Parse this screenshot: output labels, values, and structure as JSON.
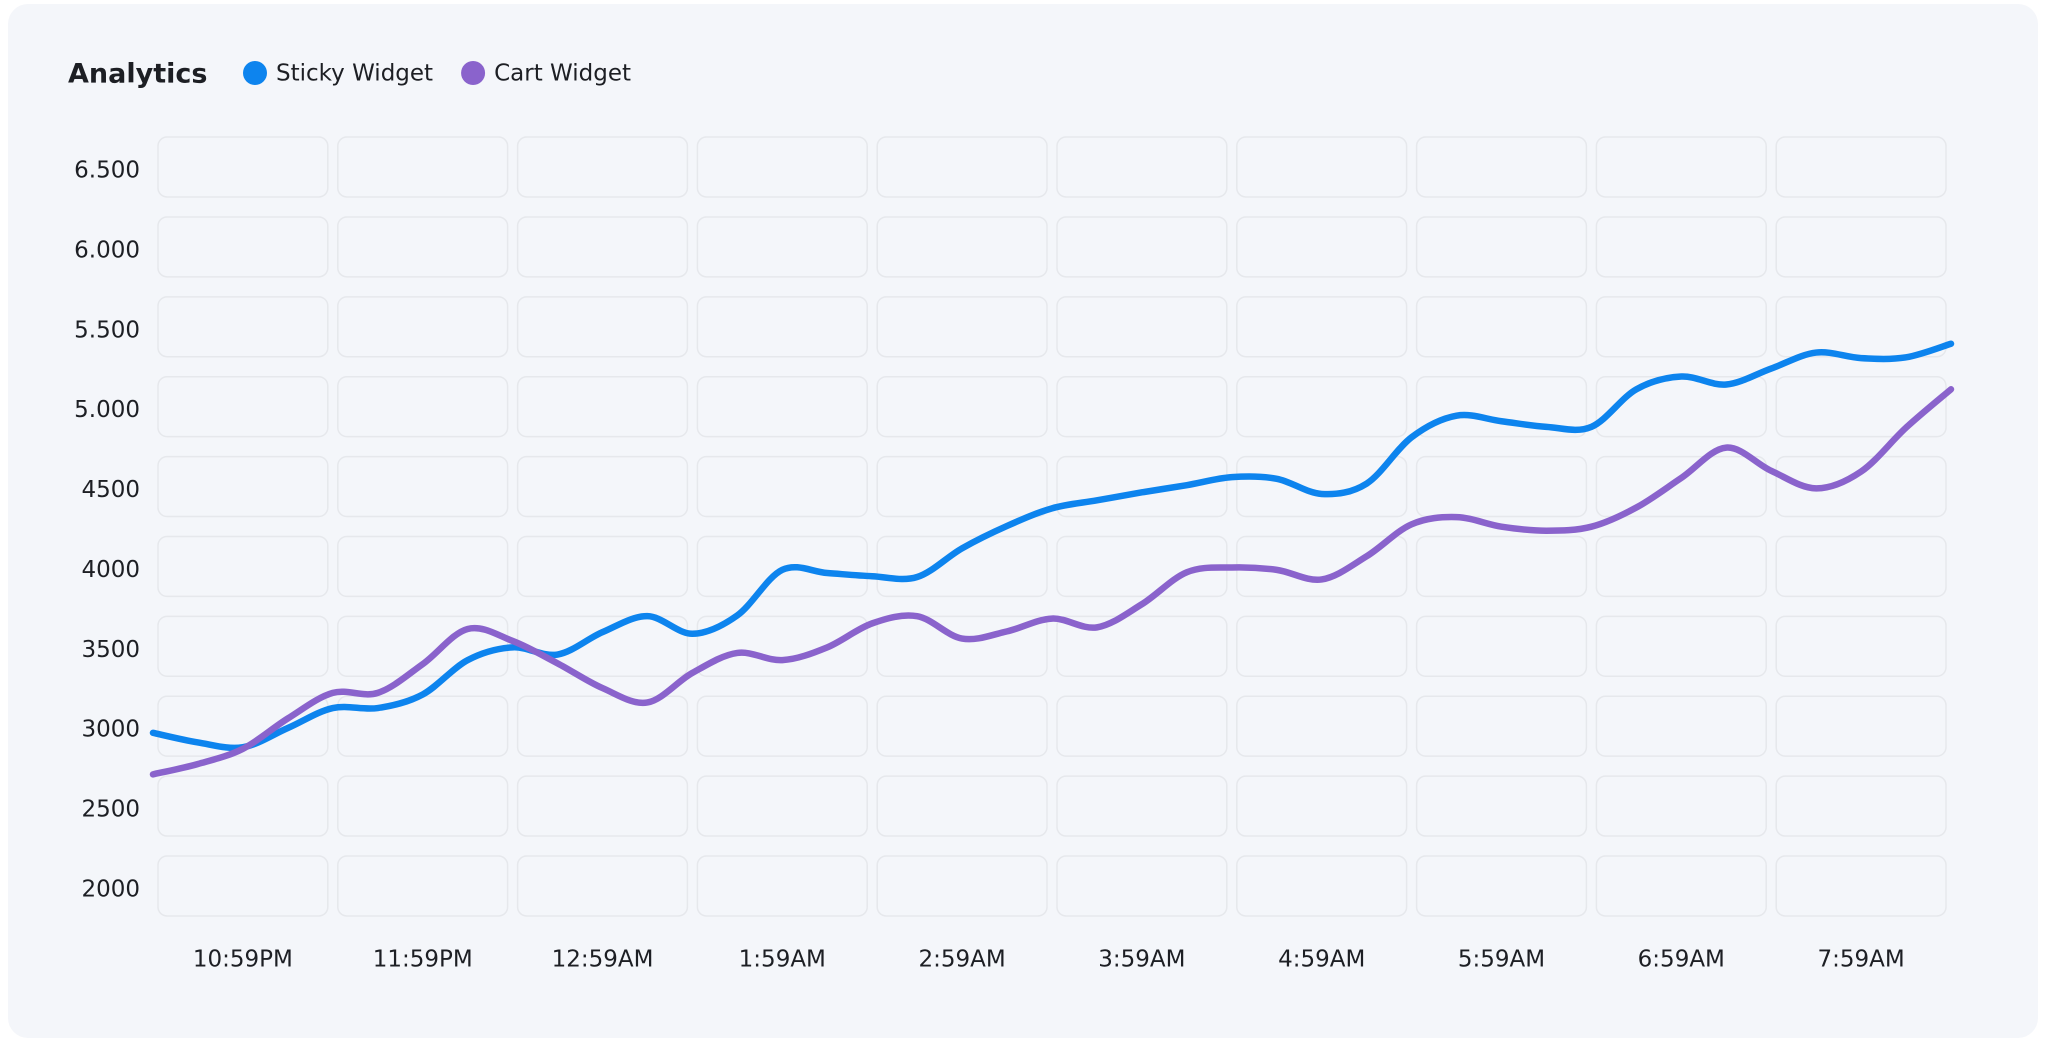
{
  "chart_data": {
    "type": "line",
    "title": "Analytics",
    "categories": [
      null,
      null,
      "10:59PM",
      null,
      null,
      null,
      "11:59PM",
      null,
      null,
      null,
      "12:59AM",
      null,
      null,
      null,
      "1:59AM",
      null,
      null,
      null,
      "2:59AM",
      null,
      null,
      null,
      "3:59AM",
      null,
      null,
      null,
      "4:59AM",
      null,
      null,
      null,
      "5:59AM",
      null,
      null,
      null,
      "6:59AM",
      null,
      null,
      null,
      "7:59AM",
      null,
      null
    ],
    "series": [
      {
        "name": "Sticky Widget",
        "color": "#0d84ee",
        "values": [
          2990,
          2930,
          2900,
          3020,
          3145,
          3145,
          3230,
          3445,
          3525,
          3480,
          3620,
          3720,
          3610,
          3725,
          4010,
          3990,
          3970,
          3965,
          4145,
          4285,
          4395,
          4445,
          4495,
          4540,
          4590,
          4580,
          4485,
          4550,
          4840,
          4975,
          4940,
          4905,
          4905,
          5140,
          5220,
          5170,
          5270,
          5370,
          5335,
          5340,
          5425
        ]
      },
      {
        "name": "Cart Widget",
        "color": "#8a63cc",
        "values": [
          2730,
          2795,
          2890,
          3080,
          3240,
          3240,
          3420,
          3640,
          3565,
          3425,
          3270,
          3180,
          3365,
          3490,
          3445,
          3525,
          3675,
          3720,
          3580,
          3625,
          3705,
          3650,
          3795,
          3995,
          4025,
          4010,
          3950,
          4095,
          4295,
          4340,
          4280,
          4255,
          4280,
          4400,
          4585,
          4775,
          4630,
          4520,
          4625,
          4900,
          5140
        ]
      }
    ],
    "ylim": [
      2000,
      6500
    ],
    "yticks": [
      2000,
      2500,
      3000,
      3500,
      4000,
      4500,
      {
        "value": 5000,
        "label": "5.000"
      },
      {
        "value": 5500,
        "label": "5.500"
      },
      {
        "value": 6000,
        "label": "6.000"
      },
      {
        "value": 6500,
        "label": "6.500"
      }
    ],
    "grid": true,
    "legend": "top"
  }
}
